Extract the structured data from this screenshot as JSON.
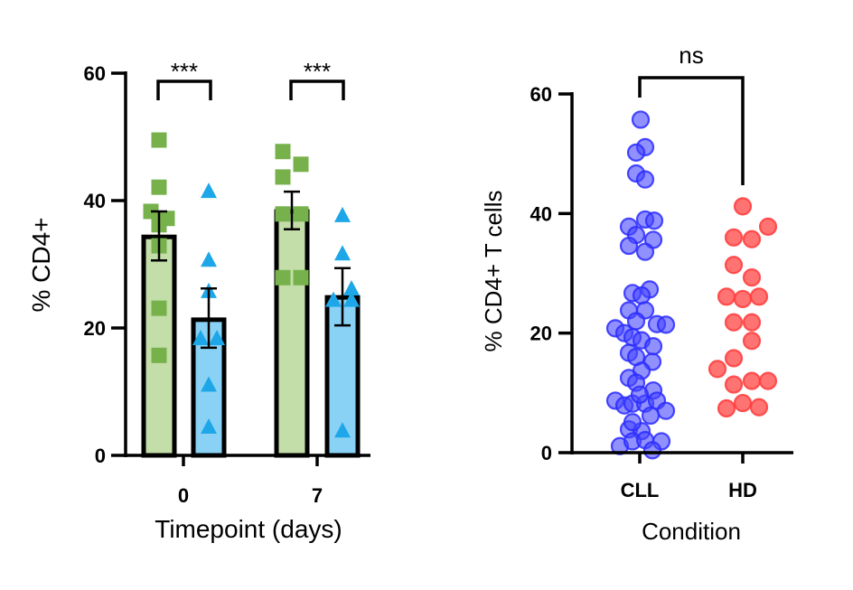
{
  "chart_data": [
    {
      "type": "bar",
      "ylabel": "% CD4+",
      "xlabel": "Timepoint (days)",
      "categories": [
        "0",
        "7"
      ],
      "ylim": [
        0,
        60
      ],
      "yticks": [
        "0",
        "20",
        "40",
        "60"
      ],
      "grid": false,
      "series": [
        {
          "color": "#77b14b",
          "fill": "#c3dea8",
          "marker": "square",
          "values": [
            34.3,
            38.3
          ],
          "error": [
            [
              30.6,
              38.3
            ],
            [
              35.5,
              41.4
            ]
          ],
          "points": [
            [
              49.5,
              42.1,
              38.3,
              37.2,
              36.2,
              32.9,
              23.1,
              15.7
            ],
            [
              47.7,
              45.7,
              43.7,
              37.9,
              37.9,
              27.9,
              27.9
            ]
          ]
        },
        {
          "color": "#1ea7e8",
          "fill": "#8ad2f5",
          "marker": "triangle",
          "values": [
            21.3,
            24.8
          ],
          "error": [
            [
              16.9,
              26.2
            ],
            [
              20.4,
              29.4
            ]
          ],
          "points": [
            [
              41.4,
              30.6,
              25.7,
              18.3,
              18.3,
              11.0,
              4.4
            ],
            [
              37.6,
              31.6,
              26.1,
              24.3,
              24.3,
              3.8
            ]
          ]
        }
      ],
      "annotations": [
        "***",
        "***"
      ]
    },
    {
      "type": "scatter",
      "ylabel": "% CD4+ T cells",
      "xlabel": "Condition",
      "categories": [
        "CLL",
        "HD"
      ],
      "ylim": [
        0,
        60
      ],
      "yticks": [
        "0",
        "20",
        "40",
        "60"
      ],
      "grid": false,
      "series": [
        {
          "color": "#2b2bff",
          "values": [
            55.7,
            51.1,
            50.2,
            46.7,
            45.7,
            39.0,
            38.8,
            37.8,
            36.4,
            35.6,
            34.6,
            33.6,
            27.3,
            26.7,
            26.3,
            23.8,
            23.8,
            22.0,
            20.8,
            21.5,
            21.4,
            20.0,
            19.3,
            18.8,
            17.8,
            16.7,
            16.0,
            15.2,
            13.7,
            12.5,
            11.7,
            10.4,
            8.7,
            7.9,
            8.2,
            8.2,
            8.7,
            7.0,
            6.2,
            3.9,
            3.6,
            1.1,
            1.9,
            2.1,
            1.9,
            0.4,
            9.7,
            5.1
          ]
        },
        {
          "color": "#ff3b3b",
          "values": [
            41.2,
            37.8,
            36.0,
            35.7,
            31.4,
            29.3,
            26.1,
            25.7,
            26.1,
            21.8,
            21.8,
            18.7,
            15.8,
            14.0,
            11.4,
            12.0,
            12.0,
            7.4,
            8.3,
            7.6
          ]
        }
      ],
      "annotations": [
        "ns"
      ]
    }
  ]
}
